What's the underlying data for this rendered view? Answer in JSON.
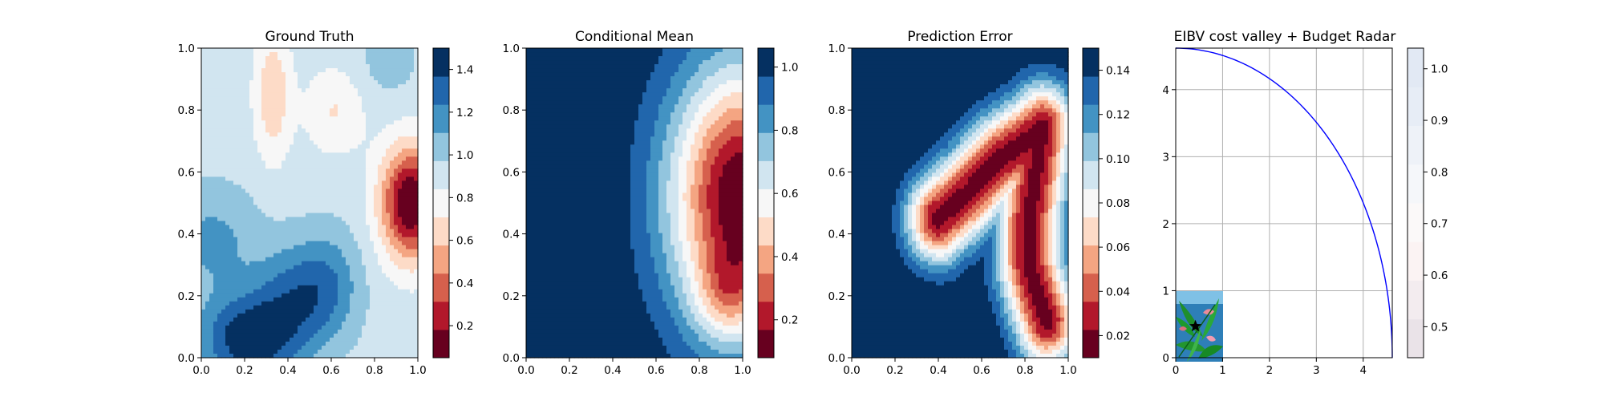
{
  "chart_data": [
    {
      "type": "heatmap",
      "title": "Ground Truth",
      "xlabel": "",
      "ylabel": "",
      "xlim": [
        0,
        1
      ],
      "ylim": [
        0,
        1
      ],
      "x_ticks": [
        "0.0",
        "0.2",
        "0.4",
        "0.6",
        "0.8",
        "1.0"
      ],
      "y_ticks": [
        "0.0",
        "0.2",
        "0.4",
        "0.6",
        "0.8",
        "1.0"
      ],
      "colormap": "RdBu",
      "colorbar_ticks": [
        "0.2",
        "0.4",
        "0.6",
        "0.8",
        "1.0",
        "1.2",
        "1.4"
      ],
      "colorbar_range": [
        0.05,
        1.5
      ],
      "field": {
        "base": 0.92,
        "bumps": [
          {
            "cx": 0.97,
            "cy": 0.5,
            "sx": 0.1,
            "sy": 0.13,
            "amp": -0.9
          },
          {
            "cx": 0.33,
            "cy": 0.85,
            "sx": 0.06,
            "sy": 0.15,
            "amp": -0.32
          },
          {
            "cx": 0.62,
            "cy": 0.8,
            "sx": 0.1,
            "sy": 0.1,
            "amp": -0.22
          },
          {
            "cx": 0.22,
            "cy": 0.06,
            "sx": 0.16,
            "sy": 0.1,
            "amp": 0.55
          },
          {
            "cx": 0.45,
            "cy": 0.2,
            "sx": 0.14,
            "sy": 0.12,
            "amp": 0.35
          },
          {
            "cx": 0.05,
            "cy": 0.38,
            "sx": 0.15,
            "sy": 0.12,
            "amp": 0.22
          },
          {
            "cx": 0.6,
            "cy": 0.25,
            "sx": 0.1,
            "sy": 0.12,
            "amp": 0.18
          },
          {
            "cx": 0.85,
            "cy": 0.95,
            "sx": 0.12,
            "sy": 0.1,
            "amp": 0.1
          }
        ]
      }
    },
    {
      "type": "heatmap",
      "title": "Conditional Mean",
      "xlabel": "",
      "ylabel": "",
      "xlim": [
        0,
        1
      ],
      "ylim": [
        0,
        1
      ],
      "x_ticks": [
        "0.0",
        "0.2",
        "0.4",
        "0.6",
        "0.8",
        "1.0"
      ],
      "y_ticks": [
        "0.0",
        "0.2",
        "0.4",
        "0.6",
        "0.8",
        "1.0"
      ],
      "colormap": "RdBu",
      "colorbar_ticks": [
        "0.2",
        "0.4",
        "0.6",
        "0.8",
        "1.0"
      ],
      "colorbar_range": [
        0.08,
        1.06
      ],
      "field": {
        "base": 1.06,
        "bumps": [
          {
            "cx": 1.0,
            "cy": 0.52,
            "sx": 0.24,
            "sy": 0.3,
            "amp": -1.0
          },
          {
            "cx": 0.92,
            "cy": 0.2,
            "sx": 0.1,
            "sy": 0.1,
            "amp": -0.25
          }
        ]
      }
    },
    {
      "type": "heatmap",
      "title": "Prediction Error",
      "xlabel": "",
      "ylabel": "",
      "xlim": [
        0,
        1
      ],
      "ylim": [
        0,
        1
      ],
      "x_ticks": [
        "0.0",
        "0.2",
        "0.4",
        "0.6",
        "0.8",
        "1.0"
      ],
      "y_ticks": [
        "0.0",
        "0.2",
        "0.4",
        "0.6",
        "0.8",
        "1.0"
      ],
      "colormap": "RdBu",
      "colorbar_ticks": [
        "0.02",
        "0.04",
        "0.06",
        "0.08",
        "0.10",
        "0.12",
        "0.14"
      ],
      "colorbar_range": [
        0.01,
        0.15
      ],
      "field": {
        "base": 0.152,
        "path_sigma": 0.1,
        "path_amp": -0.135,
        "path": [
          [
            0.4,
            0.45
          ],
          [
            0.53,
            0.53
          ],
          [
            0.68,
            0.64
          ],
          [
            0.79,
            0.69
          ],
          [
            0.88,
            0.74
          ],
          [
            0.82,
            0.45
          ],
          [
            0.82,
            0.3
          ],
          [
            0.86,
            0.2
          ],
          [
            0.9,
            0.12
          ]
        ]
      }
    },
    {
      "type": "line",
      "title": "EIBV cost valley + Budget Radar",
      "xlabel": "",
      "ylabel": "",
      "xlim": [
        0,
        4.62
      ],
      "ylim": [
        0,
        4.62
      ],
      "x_ticks": [
        "0",
        "1",
        "2",
        "3",
        "4"
      ],
      "y_ticks": [
        "0",
        "1",
        "2",
        "3",
        "4"
      ],
      "grid": true,
      "series": [
        {
          "type": "budget-ellipse-arc",
          "center": [
            0,
            0
          ],
          "radius": 4.62,
          "color": "#0000ff"
        }
      ],
      "inset_image": {
        "extent": [
          0,
          1,
          0,
          1
        ]
      },
      "marker": {
        "symbol": "star",
        "x": 0.42,
        "y": 0.47,
        "color": "#000000"
      },
      "colorbar_ticks": [
        "0.5",
        "0.6",
        "0.7",
        "0.8",
        "0.9",
        "1.0"
      ],
      "colorbar_range": [
        0.44,
        1.04
      ],
      "colorbar_colormap": "RdBu-faded"
    }
  ]
}
